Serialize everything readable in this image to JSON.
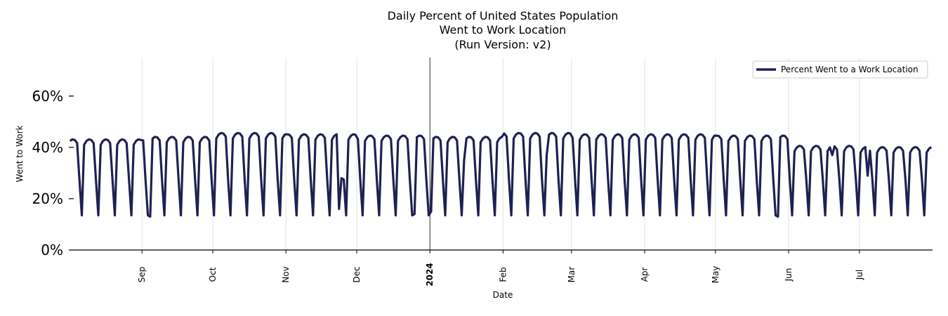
{
  "chart_data": {
    "type": "line",
    "title": [
      "Daily Percent of United States Population",
      "Went to Work Location",
      "(Run Version: v2)"
    ],
    "xlabel": "Date",
    "ylabel": "Went to Work",
    "x_range": [
      "2023-08-01",
      "2024-07-31"
    ],
    "ylim": [
      0,
      75
    ],
    "y_ticks": [
      {
        "value": 0,
        "label": "0%"
      },
      {
        "value": 20,
        "label": "20%"
      },
      {
        "value": 40,
        "label": "40%"
      },
      {
        "value": 60,
        "label": "60%"
      }
    ],
    "x_ticks": [
      {
        "date": "2023-09-01",
        "label": "Sep",
        "bold": false
      },
      {
        "date": "2023-10-01",
        "label": "Oct",
        "bold": false
      },
      {
        "date": "2023-11-01",
        "label": "Nov",
        "bold": false
      },
      {
        "date": "2023-12-01",
        "label": "Dec",
        "bold": false
      },
      {
        "date": "2024-01-01",
        "label": "2024",
        "bold": true
      },
      {
        "date": "2024-02-01",
        "label": "Feb",
        "bold": false
      },
      {
        "date": "2024-03-01",
        "label": "Mar",
        "bold": false
      },
      {
        "date": "2024-04-01",
        "label": "Apr",
        "bold": false
      },
      {
        "date": "2024-05-01",
        "label": "May",
        "bold": false
      },
      {
        "date": "2024-06-01",
        "label": "Jun",
        "bold": false
      },
      {
        "date": "2024-07-01",
        "label": "Jul",
        "bold": false
      }
    ],
    "grid": true,
    "legend_position": "top-right",
    "series": [
      {
        "name": "Percent Went to a Work Location",
        "color": "#1f2152",
        "weekday_level_by_month": {
          "2023-08": 42.5,
          "2023-09": 43.5,
          "2023-10": 45,
          "2023-11": 44.5,
          "2023-12": 44,
          "2024-01": 43.5,
          "2024-02": 45,
          "2024-03": 44.5,
          "2024-04": 44.5,
          "2024-05": 44,
          "2024-06": 40,
          "2024-07": 39.5
        },
        "weekend_low": 13.5,
        "holiday_dips": [
          {
            "date": "2023-09-04",
            "value": 13
          },
          {
            "date": "2023-11-23",
            "value": 16
          },
          {
            "date": "2023-11-24",
            "value": 28
          },
          {
            "date": "2023-12-25",
            "value": 14
          },
          {
            "date": "2024-01-01",
            "value": 15
          },
          {
            "date": "2024-01-15",
            "value": 35
          },
          {
            "date": "2024-02-19",
            "value": 37
          },
          {
            "date": "2024-05-27",
            "value": 13
          },
          {
            "date": "2024-06-19",
            "value": 37
          },
          {
            "date": "2024-07-04",
            "value": 29
          }
        ]
      }
    ]
  }
}
